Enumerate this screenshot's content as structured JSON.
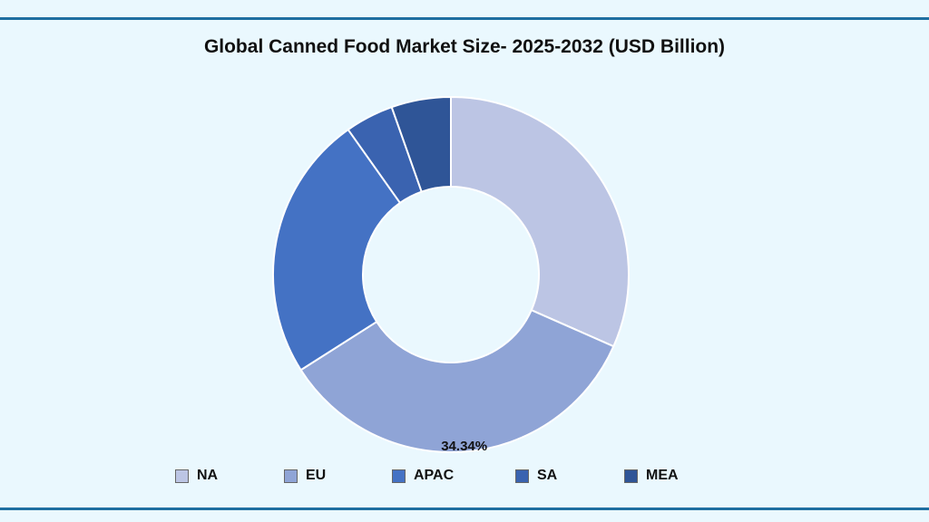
{
  "chart_data": {
    "type": "pie",
    "donut": true,
    "title": "Global Canned Food Market Size- 2025-2032 (USD Billion)",
    "categories": [
      "NA",
      "EU",
      "APAC",
      "SA",
      "MEA"
    ],
    "values": [
      31.6,
      34.34,
      24.2,
      4.4,
      5.4
    ],
    "data_labels": {
      "EU": "34.34%"
    },
    "colors": [
      "#bcc5e4",
      "#8fa4d6",
      "#4472c4",
      "#3a63b0",
      "#2f5597"
    ],
    "legend_position": "bottom"
  },
  "colors": {
    "background": "#eaf8fe",
    "rule": "#1f6fa1"
  }
}
